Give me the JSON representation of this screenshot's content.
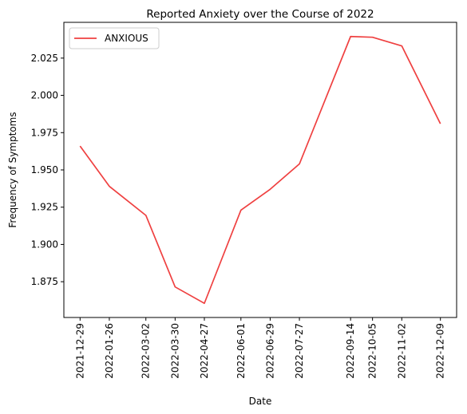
{
  "chart_data": {
    "type": "line",
    "title": "Reported Anxiety over the Course of 2022",
    "xlabel": "Date",
    "ylabel": "Frequency of Symptoms",
    "x": [
      "2021-12-29",
      "2022-01-26",
      "2022-03-02",
      "2022-03-30",
      "2022-04-27",
      "2022-06-01",
      "2022-06-29",
      "2022-07-27",
      "2022-09-14",
      "2022-10-05",
      "2022-11-02",
      "2022-12-09"
    ],
    "series": [
      {
        "name": "ANXIOUS",
        "color": "#ef4040",
        "values": [
          1.966,
          1.939,
          1.9195,
          1.8715,
          1.8605,
          1.923,
          1.937,
          1.954,
          2.0395,
          2.039,
          2.0332,
          1.981
        ]
      }
    ],
    "yticks": [
      1.875,
      1.9,
      1.925,
      1.95,
      1.975,
      2.0,
      2.025
    ],
    "ytick_labels": [
      "1.875",
      "1.900",
      "1.925",
      "1.950",
      "1.975",
      "2.000",
      "2.025"
    ],
    "ylim": [
      1.851,
      2.049
    ],
    "grid": false,
    "legend_position": "top-left"
  }
}
